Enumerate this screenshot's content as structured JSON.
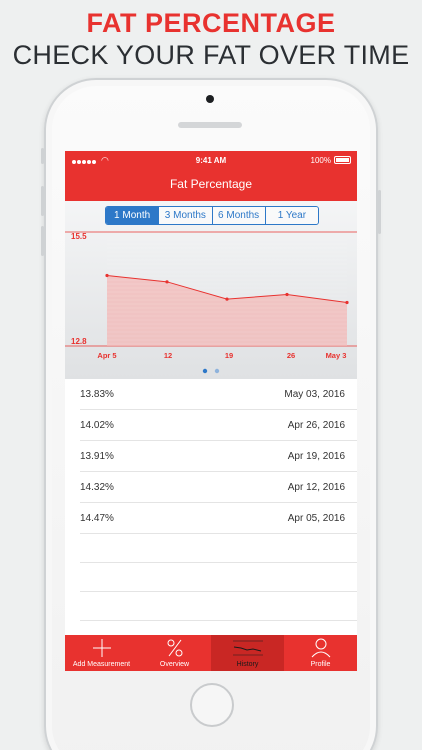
{
  "headline": {
    "line1": "FAT PERCENTAGE",
    "line2": "CHECK YOUR FAT OVER TIME"
  },
  "status_bar": {
    "time": "9:41 AM",
    "battery": "100%"
  },
  "nav": {
    "title": "Fat Percentage"
  },
  "range_tabs": [
    {
      "label": "1 Month",
      "active": true
    },
    {
      "label": "3 Months",
      "active": false
    },
    {
      "label": "6 Months",
      "active": false
    },
    {
      "label": "1 Year",
      "active": false
    }
  ],
  "chart_data": {
    "type": "area",
    "x_ticks": [
      "Apr 5",
      "12",
      "19",
      "26",
      "May 3"
    ],
    "x": [
      "Apr 5",
      "Apr 12",
      "Apr 19",
      "Apr 26",
      "May 3"
    ],
    "values": [
      14.47,
      14.32,
      13.91,
      14.02,
      13.83
    ],
    "ylim": [
      12.8,
      15.5
    ],
    "y_labels": [
      "15.5",
      "12.8"
    ],
    "colors": {
      "line": "#e8322f",
      "fill": "#f3b7b6"
    }
  },
  "page_dots": {
    "count": 2,
    "active": 0
  },
  "history": [
    {
      "percentage": "13.83%",
      "date": "May 03, 2016"
    },
    {
      "percentage": "14.02%",
      "date": "Apr 26, 2016"
    },
    {
      "percentage": "13.91%",
      "date": "Apr 19, 2016"
    },
    {
      "percentage": "14.32%",
      "date": "Apr 12, 2016"
    },
    {
      "percentage": "14.47%",
      "date": "Apr 05, 2016"
    }
  ],
  "tabbar": [
    {
      "label": "Add Measurement",
      "icon": "plus-icon",
      "active": false
    },
    {
      "label": "Overview",
      "icon": "percent-icon",
      "active": false
    },
    {
      "label": "History",
      "icon": "chart-line-icon",
      "active": true
    },
    {
      "label": "Profile",
      "icon": "person-icon",
      "active": false
    }
  ],
  "colors": {
    "accent": "#e8322f",
    "segment_blue": "#2d78c8"
  }
}
